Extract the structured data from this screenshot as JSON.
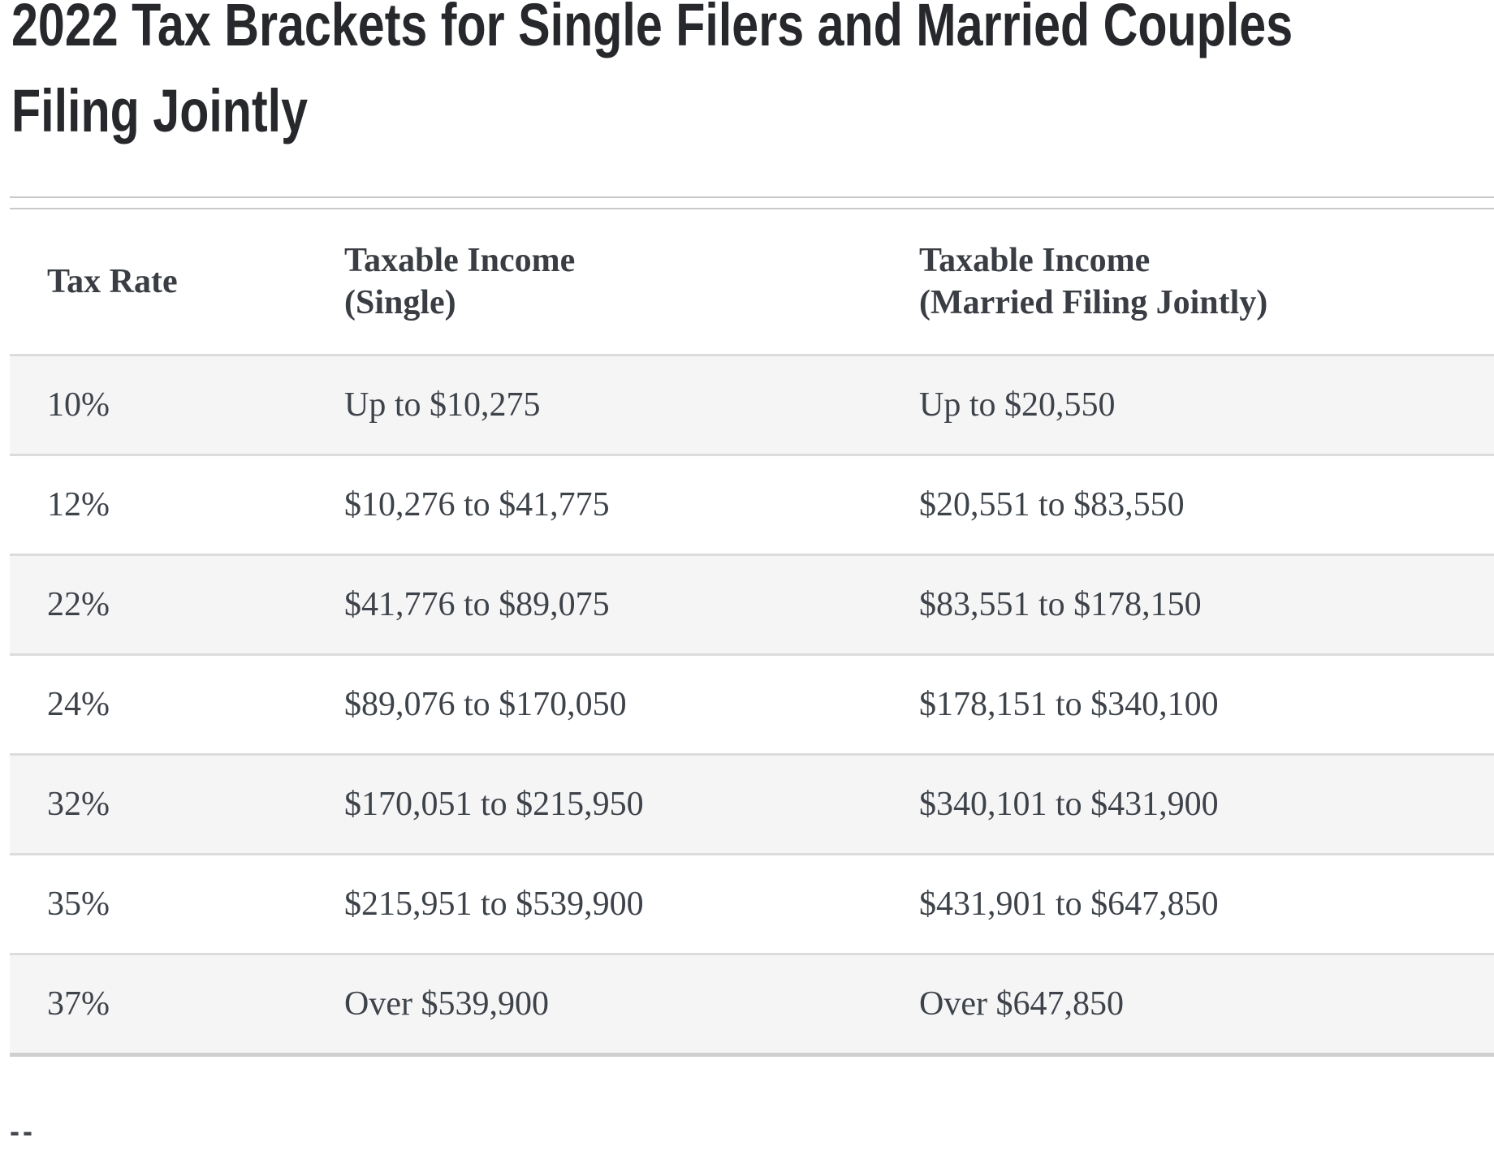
{
  "page": {
    "title_lines": [
      "2022 Tax Brackets for Single Filers and Married Couples",
      "Filing Jointly"
    ],
    "footer_note": "--"
  },
  "table": {
    "columns": {
      "rate_label": "Tax Rate",
      "single_line1": "Taxable Income",
      "single_line2": "(Single)",
      "married_line1": "Taxable Income",
      "married_line2": "(Married Filing Jointly)"
    },
    "rows": [
      {
        "rate": "10%",
        "single": "Up to $10,275",
        "married": "Up to $20,550"
      },
      {
        "rate": "12%",
        "single": "$10,276 to $41,775",
        "married": "$20,551 to $83,550"
      },
      {
        "rate": "22%",
        "single": "$41,776 to $89,075",
        "married": "$83,551 to $178,150"
      },
      {
        "rate": "24%",
        "single": "$89,076 to $170,050",
        "married": "$178,151 to $340,100"
      },
      {
        "rate": "32%",
        "single": "$170,051 to $215,950",
        "married": "$340,101 to $431,900"
      },
      {
        "rate": "35%",
        "single": "$215,951 to $539,900",
        "married": "$431,901 to $647,850"
      },
      {
        "rate": "37%",
        "single": "Over $539,900",
        "married": "Over $647,850"
      }
    ]
  },
  "colors": {
    "title_text": "#26282b",
    "header_text": "#3a3e44",
    "body_text": "#3e434a",
    "row_alt_background": "#f5f5f6",
    "row_separator": "#dcdcdc",
    "top_rule": "#c9c9c9",
    "bottom_rule": "#cfcfcf",
    "page_background": "#ffffff"
  }
}
